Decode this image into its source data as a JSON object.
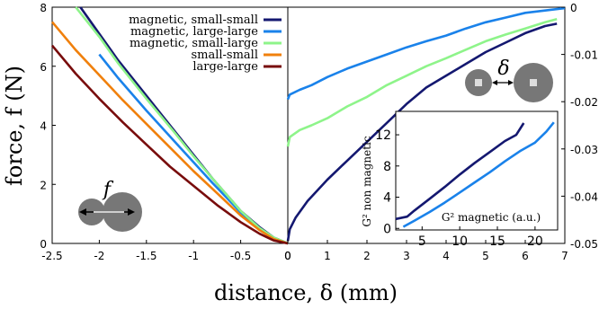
{
  "chart_data": [
    {
      "type": "line",
      "panel": "left",
      "xlabel": "distance, δ (mm)",
      "ylabel": "force, f (N)",
      "xlim": [
        -2.5,
        0
      ],
      "ylim": [
        0,
        8
      ],
      "x_ticks": [
        "-2.5",
        "-2",
        "-1.5",
        "-1",
        "-0.5",
        "0"
      ],
      "y_ticks": [
        "0",
        "2",
        "4",
        "6",
        "8"
      ],
      "legend": {
        "placement": "top-right"
      },
      "series": [
        {
          "name": "magnetic, small-small",
          "color": "#141870",
          "points": [
            [
              -2.2,
              8.0
            ],
            [
              -2.0,
              7.1
            ],
            [
              -1.8,
              6.2
            ],
            [
              -1.5,
              5.0
            ],
            [
              -1.2,
              3.8
            ],
            [
              -1.0,
              3.0
            ],
            [
              -0.8,
              2.2
            ],
            [
              -0.5,
              1.1
            ],
            [
              -0.3,
              0.55
            ],
            [
              -0.15,
              0.2
            ],
            [
              0,
              0
            ]
          ]
        },
        {
          "name": "magnetic, large-large",
          "color": "#1a82ea",
          "points": [
            [
              -2.0,
              6.4
            ],
            [
              -1.8,
              5.6
            ],
            [
              -1.5,
              4.5
            ],
            [
              -1.2,
              3.45
            ],
            [
              -1.0,
              2.75
            ],
            [
              -0.8,
              2.05
            ],
            [
              -0.5,
              1.05
            ],
            [
              -0.3,
              0.5
            ],
            [
              -0.15,
              0.18
            ],
            [
              0,
              0
            ]
          ]
        },
        {
          "name": "magnetic, small-large",
          "color": "#8ef48a",
          "points": [
            [
              -2.25,
              8.0
            ],
            [
              -2.0,
              7.0
            ],
            [
              -1.8,
              6.1
            ],
            [
              -1.5,
              4.9
            ],
            [
              -1.2,
              3.75
            ],
            [
              -1.0,
              2.95
            ],
            [
              -0.8,
              2.2
            ],
            [
              -0.5,
              1.1
            ],
            [
              -0.3,
              0.52
            ],
            [
              -0.15,
              0.2
            ],
            [
              0,
              0
            ]
          ]
        },
        {
          "name": "small-small",
          "color": "#f0800c",
          "points": [
            [
              -2.5,
              7.5
            ],
            [
              -2.25,
              6.55
            ],
            [
              -2.0,
              5.7
            ],
            [
              -1.75,
              4.85
            ],
            [
              -1.5,
              4.05
            ],
            [
              -1.25,
              3.25
            ],
            [
              -1.0,
              2.45
            ],
            [
              -0.75,
              1.7
            ],
            [
              -0.5,
              0.95
            ],
            [
              -0.3,
              0.45
            ],
            [
              -0.15,
              0.15
            ],
            [
              0,
              0
            ]
          ]
        },
        {
          "name": "large-large",
          "color": "#780c0c",
          "points": [
            [
              -2.5,
              6.7
            ],
            [
              -2.25,
              5.75
            ],
            [
              -2.0,
              4.9
            ],
            [
              -1.75,
              4.1
            ],
            [
              -1.5,
              3.35
            ],
            [
              -1.25,
              2.6
            ],
            [
              -1.0,
              1.95
            ],
            [
              -0.75,
              1.3
            ],
            [
              -0.5,
              0.72
            ],
            [
              -0.3,
              0.33
            ],
            [
              -0.15,
              0.1
            ],
            [
              0,
              0
            ]
          ]
        }
      ],
      "annotation": "f"
    },
    {
      "type": "line",
      "panel": "right",
      "xlim": [
        0,
        7
      ],
      "ylim": [
        -0.05,
        0
      ],
      "x_ticks": [
        "0",
        "1",
        "2",
        "3",
        "4",
        "5",
        "6",
        "7"
      ],
      "y_ticks": [
        "0",
        "-0.01",
        "-0.02",
        "-0.03",
        "-0.04",
        "-0.05"
      ],
      "series": [
        {
          "color": "#141870",
          "points": [
            [
              0,
              -0.0495
            ],
            [
              0.05,
              -0.047
            ],
            [
              0.2,
              -0.0445
            ],
            [
              0.5,
              -0.041
            ],
            [
              1.0,
              -0.0365
            ],
            [
              1.5,
              -0.0325
            ],
            [
              2.0,
              -0.0285
            ],
            [
              2.5,
              -0.0245
            ],
            [
              3.0,
              -0.0205
            ],
            [
              3.5,
              -0.017
            ],
            [
              4.0,
              -0.0145
            ],
            [
              4.5,
              -0.012
            ],
            [
              5.0,
              -0.0095
            ],
            [
              5.5,
              -0.0075
            ],
            [
              6.0,
              -0.0055
            ],
            [
              6.5,
              -0.004
            ],
            [
              6.8,
              -0.0035
            ]
          ]
        },
        {
          "color": "#1a82ea",
          "points": [
            [
              0,
              -0.0195
            ],
            [
              0.05,
              -0.0185
            ],
            [
              0.3,
              -0.0175
            ],
            [
              0.6,
              -0.0165
            ],
            [
              1.0,
              -0.0148
            ],
            [
              1.5,
              -0.013
            ],
            [
              2.0,
              -0.0115
            ],
            [
              2.5,
              -0.01
            ],
            [
              3.0,
              -0.0085
            ],
            [
              3.5,
              -0.0072
            ],
            [
              4.0,
              -0.006
            ],
            [
              4.5,
              -0.0045
            ],
            [
              5.0,
              -0.0032
            ],
            [
              5.5,
              -0.0022
            ],
            [
              6.0,
              -0.0012
            ],
            [
              6.5,
              -0.0007
            ],
            [
              7.0,
              -0.0002
            ]
          ]
        },
        {
          "color": "#8ef48a",
          "points": [
            [
              0,
              -0.0295
            ],
            [
              0.05,
              -0.0275
            ],
            [
              0.3,
              -0.026
            ],
            [
              0.6,
              -0.025
            ],
            [
              1.0,
              -0.0235
            ],
            [
              1.5,
              -0.021
            ],
            [
              2.0,
              -0.019
            ],
            [
              2.5,
              -0.0165
            ],
            [
              3.0,
              -0.0145
            ],
            [
              3.5,
              -0.0125
            ],
            [
              4.0,
              -0.0108
            ],
            [
              4.5,
              -0.009
            ],
            [
              5.0,
              -0.0072
            ],
            [
              5.5,
              -0.0058
            ],
            [
              6.0,
              -0.0045
            ],
            [
              6.5,
              -0.0032
            ],
            [
              6.8,
              -0.0025
            ]
          ]
        }
      ],
      "annotation": "δ"
    },
    {
      "type": "line",
      "panel": "inset",
      "xlabel": "G² magnetic (a.u.)",
      "ylabel": "G² non magnetic",
      "xlim": [
        1.5,
        23
      ],
      "ylim": [
        -0.2,
        15
      ],
      "x_ticks": [
        "5",
        "10",
        "15",
        "20"
      ],
      "y_ticks": [
        "0",
        "4",
        "8",
        "12"
      ],
      "series": [
        {
          "color": "#141870",
          "points": [
            [
              1.5,
              1.2
            ],
            [
              3,
              1.5
            ],
            [
              4,
              2.3
            ],
            [
              6,
              3.8
            ],
            [
              8,
              5.3
            ],
            [
              10,
              6.9
            ],
            [
              12,
              8.4
            ],
            [
              14,
              9.8
            ],
            [
              16,
              11.2
            ],
            [
              17.5,
              12.0
            ],
            [
              18.5,
              13.5
            ]
          ]
        },
        {
          "color": "#1a82ea",
          "points": [
            [
              2.5,
              0.2
            ],
            [
              4,
              1.0
            ],
            [
              6,
              2.1
            ],
            [
              8,
              3.3
            ],
            [
              10,
              4.6
            ],
            [
              12,
              5.9
            ],
            [
              14,
              7.2
            ],
            [
              16,
              8.6
            ],
            [
              18,
              9.9
            ],
            [
              20,
              11.0
            ],
            [
              21.5,
              12.4
            ],
            [
              22.5,
              13.6
            ]
          ]
        }
      ]
    }
  ]
}
